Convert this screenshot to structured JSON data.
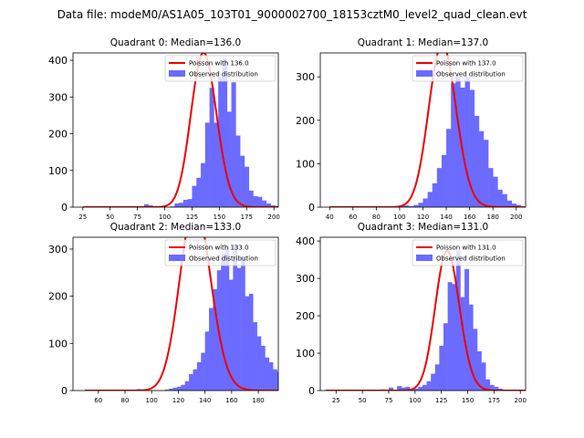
{
  "suptitle": "Data file: modeM0/AS1A05_103T01_9000002700_18153cztM0_level2_quad_clean.evt",
  "colors": {
    "observed": "#6b6bff",
    "poisson": "#ee0000",
    "axis": "#000000"
  },
  "chart_data": [
    {
      "type": "bar",
      "title": "Quadrant 0: Median=136.0",
      "legend": {
        "poisson_label": "Poisson with 136.0",
        "observed_label": "Observed distribution",
        "placement": "top-right"
      },
      "xlim": [
        16,
        204
      ],
      "ylim": [
        0,
        420
      ],
      "xticks": [
        25,
        50,
        75,
        100,
        125,
        150,
        175,
        200
      ],
      "yticks": [
        0,
        100,
        200,
        300,
        400
      ],
      "bins": {
        "start": 25,
        "width": 4
      },
      "observed": [
        0,
        0,
        0,
        0,
        0,
        0,
        0,
        0,
        0,
        0,
        0,
        0,
        0,
        0,
        8,
        5,
        3,
        0,
        4,
        0,
        2,
        10,
        12,
        20,
        22,
        58,
        80,
        120,
        230,
        325,
        230,
        355,
        405,
        260,
        340,
        195,
        140,
        110,
        45,
        30,
        28,
        18,
        10,
        5,
        3,
        2,
        1,
        0,
        0,
        0,
        0,
        0,
        0
      ],
      "poisson": {
        "mu": 136,
        "scale": 4
      }
    },
    {
      "type": "bar",
      "title": "Quadrant 1: Median=137.0",
      "legend": {
        "poisson_label": "Poisson with 137.0",
        "observed_label": "Observed distribution",
        "placement": "top-right"
      },
      "xlim": [
        32,
        208
      ],
      "ylim": [
        0,
        355
      ],
      "xticks": [
        40,
        60,
        80,
        100,
        120,
        140,
        160,
        180,
        200
      ],
      "yticks": [
        0,
        100,
        200,
        300
      ],
      "bins": {
        "start": 40,
        "width": 4
      },
      "observed": [
        0,
        0,
        0,
        0,
        0,
        0,
        0,
        0,
        0,
        0,
        0,
        0,
        0,
        0,
        1,
        3,
        4,
        2,
        5,
        10,
        20,
        35,
        55,
        90,
        120,
        180,
        285,
        300,
        275,
        300,
        270,
        210,
        175,
        155,
        90,
        70,
        40,
        30,
        15,
        8,
        5,
        2,
        1,
        0,
        0,
        0,
        0,
        0,
        0,
        0
      ],
      "poisson": {
        "mu": 137,
        "scale": 4
      }
    },
    {
      "type": "bar",
      "title": "Quadrant 2: Median=133.0",
      "legend": {
        "poisson_label": "Poisson with 133.0",
        "observed_label": "Observed distribution",
        "placement": "top-right"
      },
      "xlim": [
        41,
        195
      ],
      "ylim": [
        0,
        325
      ],
      "xticks": [
        60,
        80,
        100,
        120,
        140,
        160,
        180
      ],
      "yticks": [
        0,
        100,
        200,
        300
      ],
      "bins": {
        "start": 50,
        "width": 3
      },
      "observed": [
        0,
        0,
        0,
        0,
        0,
        0,
        0,
        0,
        0,
        0,
        0,
        0,
        1,
        3,
        2,
        1,
        0,
        1,
        0,
        0,
        2,
        4,
        6,
        8,
        12,
        20,
        35,
        45,
        60,
        80,
        125,
        175,
        215,
        255,
        290,
        305,
        235,
        310,
        260,
        285,
        200,
        205,
        145,
        115,
        95,
        70,
        60,
        45,
        40,
        28,
        25,
        12,
        8,
        5,
        3,
        2,
        1,
        0,
        0,
        0,
        0,
        0,
        0,
        0,
        0,
        0,
        0,
        0,
        0,
        0
      ],
      "poisson": {
        "mu": 133,
        "scale": 3
      }
    },
    {
      "type": "bar",
      "title": "Quadrant 3: Median=131.0",
      "legend": {
        "poisson_label": "Poisson with 131.0",
        "observed_label": "Observed distribution",
        "placement": "top-right"
      },
      "xlim": [
        10,
        205
      ],
      "ylim": [
        0,
        410
      ],
      "xticks": [
        25,
        50,
        75,
        100,
        125,
        150,
        175,
        200
      ],
      "yticks": [
        0,
        100,
        200,
        300,
        400
      ],
      "bins": {
        "start": 15,
        "width": 4
      },
      "observed": [
        0,
        0,
        0,
        0,
        0,
        0,
        0,
        0,
        0,
        0,
        0,
        0,
        0,
        3,
        0,
        8,
        2,
        12,
        8,
        10,
        4,
        5,
        10,
        15,
        25,
        45,
        70,
        120,
        180,
        290,
        285,
        375,
        250,
        325,
        230,
        165,
        105,
        75,
        30,
        15,
        10,
        5,
        2,
        1,
        0,
        0,
        0,
        0
      ],
      "poisson": {
        "mu": 131,
        "scale": 4
      }
    }
  ]
}
